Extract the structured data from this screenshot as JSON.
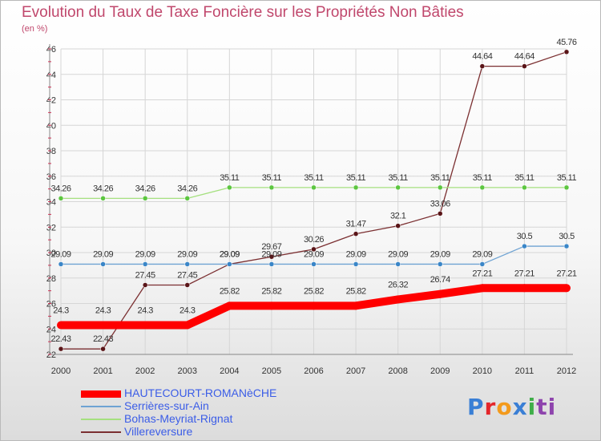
{
  "header": {
    "title": "Evolution du Taux de Taxe Foncière sur les Propriétés Non Bâties",
    "subtitle": "(en %)"
  },
  "logo": {
    "text": "Proxiti",
    "letters": [
      "P",
      "r",
      "o",
      "x",
      "i",
      "ti"
    ]
  },
  "chart_data": {
    "type": "line",
    "title": "Evolution du Taux de Taxe Foncière sur les Propriétés Non Bâties",
    "ylabel": "(en %)",
    "xlabel": "",
    "x": [
      2000,
      2001,
      2002,
      2003,
      2004,
      2005,
      2006,
      2007,
      2008,
      2009,
      2010,
      2011,
      2012
    ],
    "ylim": [
      22,
      46
    ],
    "yticks": [
      22,
      24,
      26,
      28,
      30,
      32,
      34,
      36,
      38,
      40,
      42,
      44,
      46
    ],
    "grid": true,
    "legend": "bottom-left",
    "series": [
      {
        "name": "HAUTECOURT-ROMANèCHE",
        "color": "#ff0000",
        "marker": "#ff0000",
        "values": [
          24.3,
          24.3,
          24.3,
          24.3,
          25.82,
          25.82,
          25.82,
          25.82,
          26.32,
          26.74,
          27.21,
          27.21,
          27.21
        ],
        "labels": [
          "24.3",
          "24.3",
          "24.3",
          "24.3",
          "25.82",
          "25.82",
          "25.82",
          "25.82",
          "26.32",
          "26.74",
          "27.21",
          "27.21",
          "27.21"
        ]
      },
      {
        "name": "Serrières-sur-Ain",
        "color": "#6fa3d3",
        "marker": "#3a86c8",
        "values": [
          29.09,
          29.09,
          29.09,
          29.09,
          29.09,
          29.09,
          29.09,
          29.09,
          29.09,
          29.09,
          29.09,
          30.5,
          30.5
        ],
        "labels": [
          "29.09",
          "29.09",
          "29.09",
          "29.09",
          "29.09",
          "29.09",
          "29.09",
          "29.09",
          "29.09",
          "29.09",
          "29.09",
          "30.5",
          "30.5"
        ]
      },
      {
        "name": "Bohas-Meyriat-Rignat",
        "color": "#a5e07f",
        "marker": "#5cc640",
        "values": [
          34.26,
          34.26,
          34.26,
          34.26,
          35.11,
          35.11,
          35.11,
          35.11,
          35.11,
          35.11,
          35.11,
          35.11,
          35.11
        ],
        "labels": [
          "34.26",
          "34.26",
          "34.26",
          "34.26",
          "35.11",
          "35.11",
          "35.11",
          "35.11",
          "35.11",
          "35.11",
          "35.11",
          "35.11",
          "35.11"
        ]
      },
      {
        "name": "Villereversure",
        "color": "#7b2f31",
        "marker": "#5a1518",
        "values": [
          22.43,
          22.43,
          27.45,
          27.45,
          29.09,
          29.67,
          30.26,
          31.47,
          32.1,
          33.06,
          44.64,
          44.64,
          45.76
        ],
        "labels": [
          "22.43",
          "22.43",
          "27.45",
          "27.45",
          "29.09",
          "29.67",
          "30.26",
          "31.47",
          "32.1",
          "33.06",
          "44.64",
          "44.64",
          "45.76"
        ]
      }
    ]
  }
}
